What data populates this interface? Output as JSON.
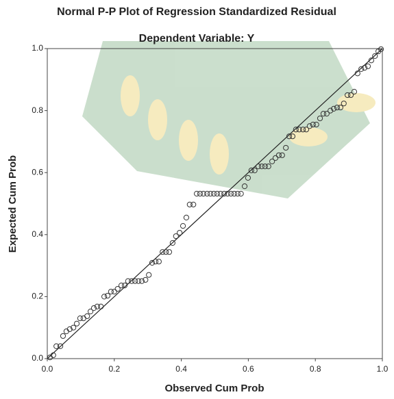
{
  "chart_data": {
    "type": "scatter",
    "title": "Normal P-P Plot of Regression Standardized Residual",
    "subtitle": "Dependent Variable: Y",
    "x_label": "Observed Cum Prob",
    "y_label": "Expected Cum Prob",
    "xlim": [
      0,
      1
    ],
    "ylim": [
      0,
      1
    ],
    "xticks": [
      {
        "value": 0,
        "label": "0.0"
      },
      0.2,
      0.4,
      0.6,
      0.8,
      {
        "value": 1,
        "label": "1.0"
      }
    ],
    "yticks": [
      {
        "value": 0,
        "label": "0.0"
      },
      0.2,
      0.4,
      0.6,
      0.8,
      {
        "value": 1,
        "label": "1.0"
      }
    ],
    "color": "#333333",
    "x": [
      0.008,
      0.018,
      0.027,
      0.039,
      0.047,
      0.057,
      0.067,
      0.078,
      0.088,
      0.098,
      0.108,
      0.119,
      0.129,
      0.139,
      0.149,
      0.16,
      0.17,
      0.18,
      0.19,
      0.2,
      0.21,
      0.221,
      0.231,
      0.241,
      0.252,
      0.262,
      0.272,
      0.282,
      0.293,
      0.303,
      0.313,
      0.323,
      0.333,
      0.344,
      0.354,
      0.364,
      0.374,
      0.384,
      0.395,
      0.405,
      0.415,
      0.425,
      0.436,
      0.446,
      0.456,
      0.466,
      0.477,
      0.487,
      0.497,
      0.507,
      0.517,
      0.528,
      0.538,
      0.548,
      0.558,
      0.568,
      0.578,
      0.589,
      0.599,
      0.609,
      0.619,
      0.63,
      0.64,
      0.65,
      0.66,
      0.671,
      0.681,
      0.691,
      0.701,
      0.712,
      0.722,
      0.732,
      0.742,
      0.752,
      0.763,
      0.773,
      0.783,
      0.793,
      0.803,
      0.814,
      0.824,
      0.834,
      0.845,
      0.855,
      0.865,
      0.875,
      0.885,
      0.896,
      0.906,
      0.916,
      0.926,
      0.937,
      0.947,
      0.957,
      0.967,
      0.978,
      0.988,
      0.996
    ],
    "y": [
      0.004,
      0.011,
      0.04,
      0.04,
      0.073,
      0.088,
      0.095,
      0.1,
      0.113,
      0.13,
      0.13,
      0.137,
      0.152,
      0.163,
      0.168,
      0.168,
      0.2,
      0.203,
      0.216,
      0.216,
      0.225,
      0.236,
      0.236,
      0.25,
      0.25,
      0.25,
      0.25,
      0.25,
      0.254,
      0.27,
      0.309,
      0.313,
      0.313,
      0.344,
      0.344,
      0.344,
      0.373,
      0.395,
      0.406,
      0.428,
      0.455,
      0.497,
      0.497,
      0.532,
      0.532,
      0.532,
      0.532,
      0.532,
      0.532,
      0.532,
      0.532,
      0.532,
      0.532,
      0.532,
      0.532,
      0.532,
      0.532,
      0.556,
      0.583,
      0.607,
      0.607,
      0.62,
      0.62,
      0.62,
      0.62,
      0.636,
      0.647,
      0.656,
      0.656,
      0.68,
      0.717,
      0.717,
      0.739,
      0.739,
      0.739,
      0.739,
      0.75,
      0.755,
      0.755,
      0.775,
      0.79,
      0.79,
      0.8,
      0.806,
      0.81,
      0.81,
      0.823,
      0.85,
      0.85,
      0.861,
      0.92,
      0.934,
      0.938,
      0.943,
      0.962,
      0.976,
      0.991,
      0.998
    ]
  }
}
